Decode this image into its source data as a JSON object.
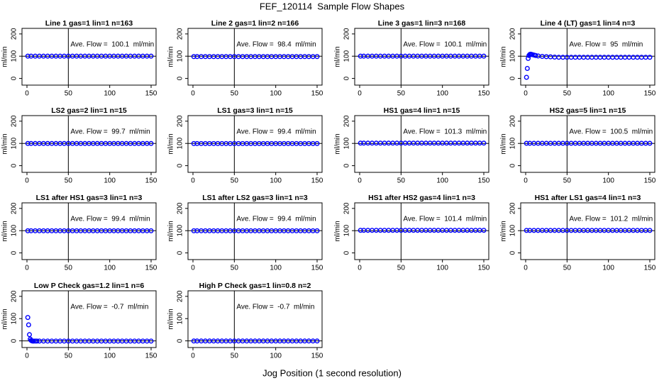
{
  "title": "FEF_120114  Sample Flow Shapes",
  "xlabel": "Jog Position (1 second resolution)",
  "chart_data": [
    {
      "type": "scatter",
      "title": "Line 1 gas=1 lin=1 n=163",
      "annotation": "Ave. Flow =  100.1  ml/min",
      "ylabel": "ml/min",
      "color": "#0000ff",
      "xlim": [
        -6,
        156
      ],
      "ylim": [
        -30,
        225
      ],
      "xticks": [
        0,
        50,
        100,
        150
      ],
      "yticks": [
        0,
        100,
        200
      ],
      "vline": 50,
      "hline": 100,
      "x": [
        1,
        5,
        10,
        15,
        20,
        25,
        30,
        35,
        40,
        45,
        50,
        55,
        60,
        65,
        70,
        75,
        80,
        85,
        90,
        95,
        100,
        105,
        110,
        115,
        120,
        125,
        130,
        135,
        140,
        145,
        150
      ],
      "values": [
        100.1,
        100.1,
        100.1,
        100.1,
        100.1,
        100.1,
        100.1,
        100.1,
        100.1,
        100.1,
        100.1,
        100.1,
        100.1,
        100.1,
        100.1,
        100.1,
        100.1,
        100.1,
        100.1,
        100.1,
        100.1,
        100.1,
        100.1,
        100.1,
        100.1,
        100.1,
        100.1,
        100.1,
        100.1,
        100.1,
        100.1
      ]
    },
    {
      "type": "scatter",
      "title": "Line 2 gas=1 lin=2 n=166",
      "annotation": "Ave. Flow =  98.4  ml/min",
      "ylabel": "ml/min",
      "color": "#0000ff",
      "xlim": [
        -6,
        156
      ],
      "ylim": [
        -30,
        225
      ],
      "xticks": [
        0,
        50,
        100,
        150
      ],
      "yticks": [
        0,
        100,
        200
      ],
      "vline": 50,
      "hline": 100,
      "x": [
        1,
        5,
        10,
        15,
        20,
        25,
        30,
        35,
        40,
        45,
        50,
        55,
        60,
        65,
        70,
        75,
        80,
        85,
        90,
        95,
        100,
        105,
        110,
        115,
        120,
        125,
        130,
        135,
        140,
        145,
        150
      ],
      "values": [
        98.4,
        98.4,
        98.4,
        98.4,
        98.4,
        98.4,
        98.4,
        98.4,
        98.4,
        98.4,
        98.4,
        98.4,
        98.4,
        98.4,
        98.4,
        98.4,
        98.4,
        98.4,
        98.4,
        98.4,
        98.4,
        98.4,
        98.4,
        98.4,
        98.4,
        98.4,
        98.4,
        98.4,
        98.4,
        98.4,
        98.4
      ]
    },
    {
      "type": "scatter",
      "title": "Line 3 gas=1 lin=3 n=168",
      "annotation": "Ave. Flow =  100.1  ml/min",
      "ylabel": "ml/min",
      "color": "#0000ff",
      "xlim": [
        -6,
        156
      ],
      "ylim": [
        -30,
        225
      ],
      "xticks": [
        0,
        50,
        100,
        150
      ],
      "yticks": [
        0,
        100,
        200
      ],
      "vline": 50,
      "hline": 100,
      "x": [
        1,
        5,
        10,
        15,
        20,
        25,
        30,
        35,
        40,
        45,
        50,
        55,
        60,
        65,
        70,
        75,
        80,
        85,
        90,
        95,
        100,
        105,
        110,
        115,
        120,
        125,
        130,
        135,
        140,
        145,
        150
      ],
      "values": [
        100.1,
        100.1,
        100.1,
        100.1,
        100.1,
        100.1,
        100.1,
        100.1,
        100.1,
        100.1,
        100.1,
        100.1,
        100.1,
        100.1,
        100.1,
        100.1,
        100.1,
        100.1,
        100.1,
        100.1,
        100.1,
        100.1,
        100.1,
        100.1,
        100.1,
        100.1,
        100.1,
        100.1,
        100.1,
        100.1,
        100.1
      ]
    },
    {
      "type": "scatter",
      "title": "Line 4 (LT) gas=1 lin=4 n=3",
      "annotation": "Ave. Flow =  95  ml/min",
      "ylabel": "ml/min",
      "color": "#0000ff",
      "xlim": [
        -6,
        156
      ],
      "ylim": [
        -30,
        225
      ],
      "xticks": [
        0,
        50,
        100,
        150
      ],
      "yticks": [
        0,
        100,
        200
      ],
      "vline": 50,
      "hline": 100,
      "x": [
        1,
        2,
        3,
        4,
        5,
        6,
        7,
        8,
        10,
        12,
        15,
        20,
        25,
        30,
        35,
        40,
        45,
        50,
        55,
        60,
        65,
        70,
        75,
        80,
        85,
        90,
        95,
        100,
        105,
        110,
        115,
        120,
        125,
        130,
        135,
        140,
        145,
        150
      ],
      "values": [
        5,
        45,
        90,
        103,
        108,
        109,
        108,
        107,
        105,
        103,
        101,
        99,
        98,
        97,
        96,
        95,
        95,
        95,
        95,
        95,
        95,
        95,
        95,
        95,
        95,
        95,
        95,
        95,
        95,
        95,
        95,
        95,
        95,
        95,
        95,
        95,
        95,
        95
      ]
    },
    {
      "type": "scatter",
      "title": "LS2 gas=2 lin=1 n=15",
      "annotation": "Ave. Flow =  99.7  ml/min",
      "ylabel": "ml/min",
      "color": "#0000ff",
      "xlim": [
        -6,
        156
      ],
      "ylim": [
        -30,
        225
      ],
      "xticks": [
        0,
        50,
        100,
        150
      ],
      "yticks": [
        0,
        100,
        200
      ],
      "vline": 50,
      "hline": 100,
      "x": [
        1,
        5,
        10,
        15,
        20,
        25,
        30,
        35,
        40,
        45,
        50,
        55,
        60,
        65,
        70,
        75,
        80,
        85,
        90,
        95,
        100,
        105,
        110,
        115,
        120,
        125,
        130,
        135,
        140,
        145,
        150
      ],
      "values": [
        99.7,
        99.7,
        99.7,
        99.7,
        99.7,
        99.7,
        99.7,
        99.7,
        99.7,
        99.7,
        99.7,
        99.7,
        99.7,
        99.7,
        99.7,
        99.7,
        99.7,
        99.7,
        99.7,
        99.7,
        99.7,
        99.7,
        99.7,
        99.7,
        99.7,
        99.7,
        99.7,
        99.7,
        99.7,
        99.7,
        99.7
      ]
    },
    {
      "type": "scatter",
      "title": "LS1 gas=3 lin=1 n=15",
      "annotation": "Ave. Flow =  99.4  ml/min",
      "ylabel": "ml/min",
      "color": "#0000ff",
      "xlim": [
        -6,
        156
      ],
      "ylim": [
        -30,
        225
      ],
      "xticks": [
        0,
        50,
        100,
        150
      ],
      "yticks": [
        0,
        100,
        200
      ],
      "vline": 50,
      "hline": 100,
      "x": [
        1,
        5,
        10,
        15,
        20,
        25,
        30,
        35,
        40,
        45,
        50,
        55,
        60,
        65,
        70,
        75,
        80,
        85,
        90,
        95,
        100,
        105,
        110,
        115,
        120,
        125,
        130,
        135,
        140,
        145,
        150
      ],
      "values": [
        99.4,
        99.4,
        99.4,
        99.4,
        99.4,
        99.4,
        99.4,
        99.4,
        99.4,
        99.4,
        99.4,
        99.4,
        99.4,
        99.4,
        99.4,
        99.4,
        99.4,
        99.4,
        99.4,
        99.4,
        99.4,
        99.4,
        99.4,
        99.4,
        99.4,
        99.4,
        99.4,
        99.4,
        99.4,
        99.4,
        99.4
      ]
    },
    {
      "type": "scatter",
      "title": "HS1 gas=4 lin=1 n=15",
      "annotation": "Ave. Flow =  101.3  ml/min",
      "ylabel": "ml/min",
      "color": "#0000ff",
      "xlim": [
        -6,
        156
      ],
      "ylim": [
        -30,
        225
      ],
      "xticks": [
        0,
        50,
        100,
        150
      ],
      "yticks": [
        0,
        100,
        200
      ],
      "vline": 50,
      "hline": 100,
      "x": [
        1,
        5,
        10,
        15,
        20,
        25,
        30,
        35,
        40,
        45,
        50,
        55,
        60,
        65,
        70,
        75,
        80,
        85,
        90,
        95,
        100,
        105,
        110,
        115,
        120,
        125,
        130,
        135,
        140,
        145,
        150
      ],
      "values": [
        101.3,
        101.3,
        101.3,
        101.3,
        101.3,
        101.3,
        101.3,
        101.3,
        101.3,
        101.3,
        101.3,
        101.3,
        101.3,
        101.3,
        101.3,
        101.3,
        101.3,
        101.3,
        101.3,
        101.3,
        101.3,
        101.3,
        101.3,
        101.3,
        101.3,
        101.3,
        101.3,
        101.3,
        101.3,
        101.3,
        101.3
      ]
    },
    {
      "type": "scatter",
      "title": "HS2 gas=5 lin=1 n=15",
      "annotation": "Ave. Flow =  100.5  ml/min",
      "ylabel": "ml/min",
      "color": "#0000ff",
      "xlim": [
        -6,
        156
      ],
      "ylim": [
        -30,
        225
      ],
      "xticks": [
        0,
        50,
        100,
        150
      ],
      "yticks": [
        0,
        100,
        200
      ],
      "vline": 50,
      "hline": 100,
      "x": [
        1,
        5,
        10,
        15,
        20,
        25,
        30,
        35,
        40,
        45,
        50,
        55,
        60,
        65,
        70,
        75,
        80,
        85,
        90,
        95,
        100,
        105,
        110,
        115,
        120,
        125,
        130,
        135,
        140,
        145,
        150
      ],
      "values": [
        100.5,
        100.5,
        100.5,
        100.5,
        100.5,
        100.5,
        100.5,
        100.5,
        100.5,
        100.5,
        100.5,
        100.5,
        100.5,
        100.5,
        100.5,
        100.5,
        100.5,
        100.5,
        100.5,
        100.5,
        100.5,
        100.5,
        100.5,
        100.5,
        100.5,
        100.5,
        100.5,
        100.5,
        100.5,
        100.5,
        100.5
      ]
    },
    {
      "type": "scatter",
      "title": "LS1 after HS1 gas=3 lin=1 n=3",
      "annotation": "Ave. Flow =  99.4  ml/min",
      "ylabel": "ml/min",
      "color": "#0000ff",
      "xlim": [
        -6,
        156
      ],
      "ylim": [
        -30,
        225
      ],
      "xticks": [
        0,
        50,
        100,
        150
      ],
      "yticks": [
        0,
        100,
        200
      ],
      "vline": 50,
      "hline": 100,
      "x": [
        1,
        5,
        10,
        15,
        20,
        25,
        30,
        35,
        40,
        45,
        50,
        55,
        60,
        65,
        70,
        75,
        80,
        85,
        90,
        95,
        100,
        105,
        110,
        115,
        120,
        125,
        130,
        135,
        140,
        145,
        150
      ],
      "values": [
        99.4,
        99.4,
        99.4,
        99.4,
        99.4,
        99.4,
        99.4,
        99.4,
        99.4,
        99.4,
        99.4,
        99.4,
        99.4,
        99.4,
        99.4,
        99.4,
        99.4,
        99.4,
        99.4,
        99.4,
        99.4,
        99.4,
        99.4,
        99.4,
        99.4,
        99.4,
        99.4,
        99.4,
        99.4,
        99.4,
        99.4
      ]
    },
    {
      "type": "scatter",
      "title": "LS1 after LS2 gas=3 lin=1 n=3",
      "annotation": "Ave. Flow =  99.4  ml/min",
      "ylabel": "ml/min",
      "color": "#0000ff",
      "xlim": [
        -6,
        156
      ],
      "ylim": [
        -30,
        225
      ],
      "xticks": [
        0,
        50,
        100,
        150
      ],
      "yticks": [
        0,
        100,
        200
      ],
      "vline": 50,
      "hline": 100,
      "x": [
        1,
        5,
        10,
        15,
        20,
        25,
        30,
        35,
        40,
        45,
        50,
        55,
        60,
        65,
        70,
        75,
        80,
        85,
        90,
        95,
        100,
        105,
        110,
        115,
        120,
        125,
        130,
        135,
        140,
        145,
        150
      ],
      "values": [
        99.4,
        99.4,
        99.4,
        99.4,
        99.4,
        99.4,
        99.4,
        99.4,
        99.4,
        99.4,
        99.4,
        99.4,
        99.4,
        99.4,
        99.4,
        99.4,
        99.4,
        99.4,
        99.4,
        99.4,
        99.4,
        99.4,
        99.4,
        99.4,
        99.4,
        99.4,
        99.4,
        99.4,
        99.4,
        99.4,
        99.4
      ]
    },
    {
      "type": "scatter",
      "title": "HS1 after HS2 gas=4 lin=1 n=3",
      "annotation": "Ave. Flow =  101.4  ml/min",
      "ylabel": "ml/min",
      "color": "#0000ff",
      "xlim": [
        -6,
        156
      ],
      "ylim": [
        -30,
        225
      ],
      "xticks": [
        0,
        50,
        100,
        150
      ],
      "yticks": [
        0,
        100,
        200
      ],
      "vline": 50,
      "hline": 100,
      "x": [
        1,
        5,
        10,
        15,
        20,
        25,
        30,
        35,
        40,
        45,
        50,
        55,
        60,
        65,
        70,
        75,
        80,
        85,
        90,
        95,
        100,
        105,
        110,
        115,
        120,
        125,
        130,
        135,
        140,
        145,
        150
      ],
      "values": [
        101.4,
        101.4,
        101.4,
        101.4,
        101.4,
        101.4,
        101.4,
        101.4,
        101.4,
        101.4,
        101.4,
        101.4,
        101.4,
        101.4,
        101.4,
        101.4,
        101.4,
        101.4,
        101.4,
        101.4,
        101.4,
        101.4,
        101.4,
        101.4,
        101.4,
        101.4,
        101.4,
        101.4,
        101.4,
        101.4,
        101.4
      ]
    },
    {
      "type": "scatter",
      "title": "HS1 after LS1 gas=4 lin=1 n=3",
      "annotation": "Ave. Flow =  101.2  ml/min",
      "ylabel": "ml/min",
      "color": "#0000ff",
      "xlim": [
        -6,
        156
      ],
      "ylim": [
        -30,
        225
      ],
      "xticks": [
        0,
        50,
        100,
        150
      ],
      "yticks": [
        0,
        100,
        200
      ],
      "vline": 50,
      "hline": 100,
      "x": [
        1,
        5,
        10,
        15,
        20,
        25,
        30,
        35,
        40,
        45,
        50,
        55,
        60,
        65,
        70,
        75,
        80,
        85,
        90,
        95,
        100,
        105,
        110,
        115,
        120,
        125,
        130,
        135,
        140,
        145,
        150
      ],
      "values": [
        101.2,
        101.2,
        101.2,
        101.2,
        101.2,
        101.2,
        101.2,
        101.2,
        101.2,
        101.2,
        101.2,
        101.2,
        101.2,
        101.2,
        101.2,
        101.2,
        101.2,
        101.2,
        101.2,
        101.2,
        101.2,
        101.2,
        101.2,
        101.2,
        101.2,
        101.2,
        101.2,
        101.2,
        101.2,
        101.2,
        101.2
      ]
    },
    {
      "type": "scatter",
      "title": "Low P Check gas=1.2 lin=1 n=6",
      "annotation": "Ave. Flow =  -0.7  ml/min",
      "ylabel": "ml/min",
      "color": "#0000ff",
      "xlim": [
        -6,
        156
      ],
      "ylim": [
        -30,
        225
      ],
      "xticks": [
        0,
        50,
        100,
        150
      ],
      "yticks": [
        0,
        100,
        200
      ],
      "vline": 50,
      "hline": 0,
      "x": [
        1,
        2,
        3,
        4,
        5,
        6,
        7,
        8,
        10,
        12,
        15,
        20,
        25,
        30,
        35,
        40,
        45,
        50,
        55,
        60,
        65,
        70,
        75,
        80,
        85,
        90,
        95,
        100,
        105,
        110,
        115,
        120,
        125,
        130,
        135,
        140,
        145,
        150
      ],
      "values": [
        105,
        72,
        28,
        8,
        2,
        0,
        -1,
        -1,
        -1,
        -1,
        -1,
        -1,
        -1,
        -1,
        -1,
        -1,
        -1,
        -1,
        -1,
        -1,
        -1,
        -1,
        -1,
        -1,
        -1,
        -1,
        -1,
        -1,
        -1,
        -1,
        -1,
        -1,
        -1,
        -1,
        -1,
        -1,
        -1,
        -1
      ]
    },
    {
      "type": "scatter",
      "title": "High P Check gas=1 lin=0.8 n=2",
      "annotation": "Ave. Flow =  -0.7  ml/min",
      "ylabel": "ml/min",
      "color": "#0000ff",
      "xlim": [
        -6,
        156
      ],
      "ylim": [
        -30,
        225
      ],
      "xticks": [
        0,
        50,
        100,
        150
      ],
      "yticks": [
        0,
        100,
        200
      ],
      "vline": 50,
      "hline": 0,
      "x": [
        1,
        5,
        10,
        15,
        20,
        25,
        30,
        35,
        40,
        45,
        50,
        55,
        60,
        65,
        70,
        75,
        80,
        85,
        90,
        95,
        100,
        105,
        110,
        115,
        120,
        125,
        130,
        135,
        140,
        145,
        150
      ],
      "values": [
        -0.7,
        -0.7,
        -0.7,
        -0.7,
        -0.7,
        -0.7,
        -0.7,
        -0.7,
        -0.7,
        -0.7,
        -0.7,
        -0.7,
        -0.7,
        -0.7,
        -0.7,
        -0.7,
        -0.7,
        -0.7,
        -0.7,
        -0.7,
        -0.7,
        -0.7,
        -0.7,
        -0.7,
        -0.7,
        -0.7,
        -0.7,
        -0.7,
        -0.7,
        -0.7,
        -0.7
      ]
    }
  ]
}
